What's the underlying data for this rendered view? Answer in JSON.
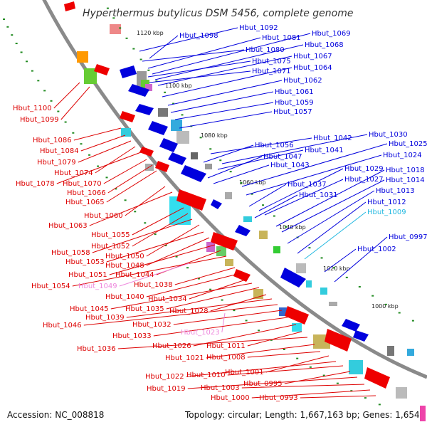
{
  "title": "Hyperthermus butylicus DSM 5456, complete genome",
  "accession_text": "Accession: NC_008818",
  "topology_text": "Topology: circular; Length: 1,667,163 bp; Genes: 1,654",
  "colors": {
    "forward": "#ee0000",
    "reverse": "#0000dd",
    "backbone": "#8a8a8a",
    "tick_dot": "#228b22",
    "highlight_cyan": "#22b8e0",
    "highlight_pink": "#ee88dd"
  },
  "kbp_markers": [
    "1120 kbp",
    "1100 kbp",
    "1080 kbp",
    "1060 kbp",
    "1040 kbp",
    "1020 kbp",
    "1000 kbp"
  ],
  "reverse_labels": [
    "Hbut_1098",
    "Hbut_1092",
    "Hbut_1081",
    "Hbut_1069",
    "Hbut_1080",
    "Hbut_1068",
    "Hbut_1067",
    "Hbut_1075",
    "Hbut_1071",
    "Hbut_1064",
    "Hbut_1062",
    "Hbut_1061",
    "Hbut_1059",
    "Hbut_1057",
    "Hbut_1042",
    "Hbut_1030",
    "Hbut_1056",
    "Hbut_1041",
    "Hbut_1025",
    "Hbut_1047",
    "Hbut_1024",
    "Hbut_1043",
    "Hbut_1029",
    "Hbut_1018",
    "Hbut_1014",
    "Hbut_1037",
    "Hbut_1027",
    "Hbut_1013",
    "Hbut_1031",
    "Hbut_1012",
    "Hbut_1009",
    "Hbut_0997",
    "Hbut_1002"
  ],
  "forward_labels": [
    "Hbut_1100",
    "Hbut_1099",
    "Hbut_1086",
    "Hbut_1084",
    "Hbut_1079",
    "Hbut_1074",
    "Hbut_1078",
    "Hbut_1070",
    "Hbut_1066",
    "Hbut_1065",
    "Hbut_1060",
    "Hbut_1063",
    "Hbut_1055",
    "Hbut_1052",
    "Hbut_1058",
    "Hbut_1050",
    "Hbut_1053",
    "Hbut_1048",
    "Hbut_1051",
    "Hbut_1044",
    "Hbut_1054",
    "Hbut_1049",
    "Hbut_1038",
    "Hbut_1040",
    "Hbut_1034",
    "Hbut_1045",
    "Hbut_1035",
    "Hbut_1028",
    "Hbut_1039",
    "Hbut_1046",
    "Hbut_1032",
    "Hbut_1023",
    "Hbut_1033",
    "Hbut_1026",
    "Hbut_1011",
    "Hbut_1036",
    "Hbut_1021",
    "Hbut_1008",
    "Hbut_1001",
    "Hbut_1022",
    "Hbut_1010",
    "Hbut_0995",
    "Hbut_1019",
    "Hbut_1003",
    "Hbut_1000",
    "Hbut_0993"
  ]
}
